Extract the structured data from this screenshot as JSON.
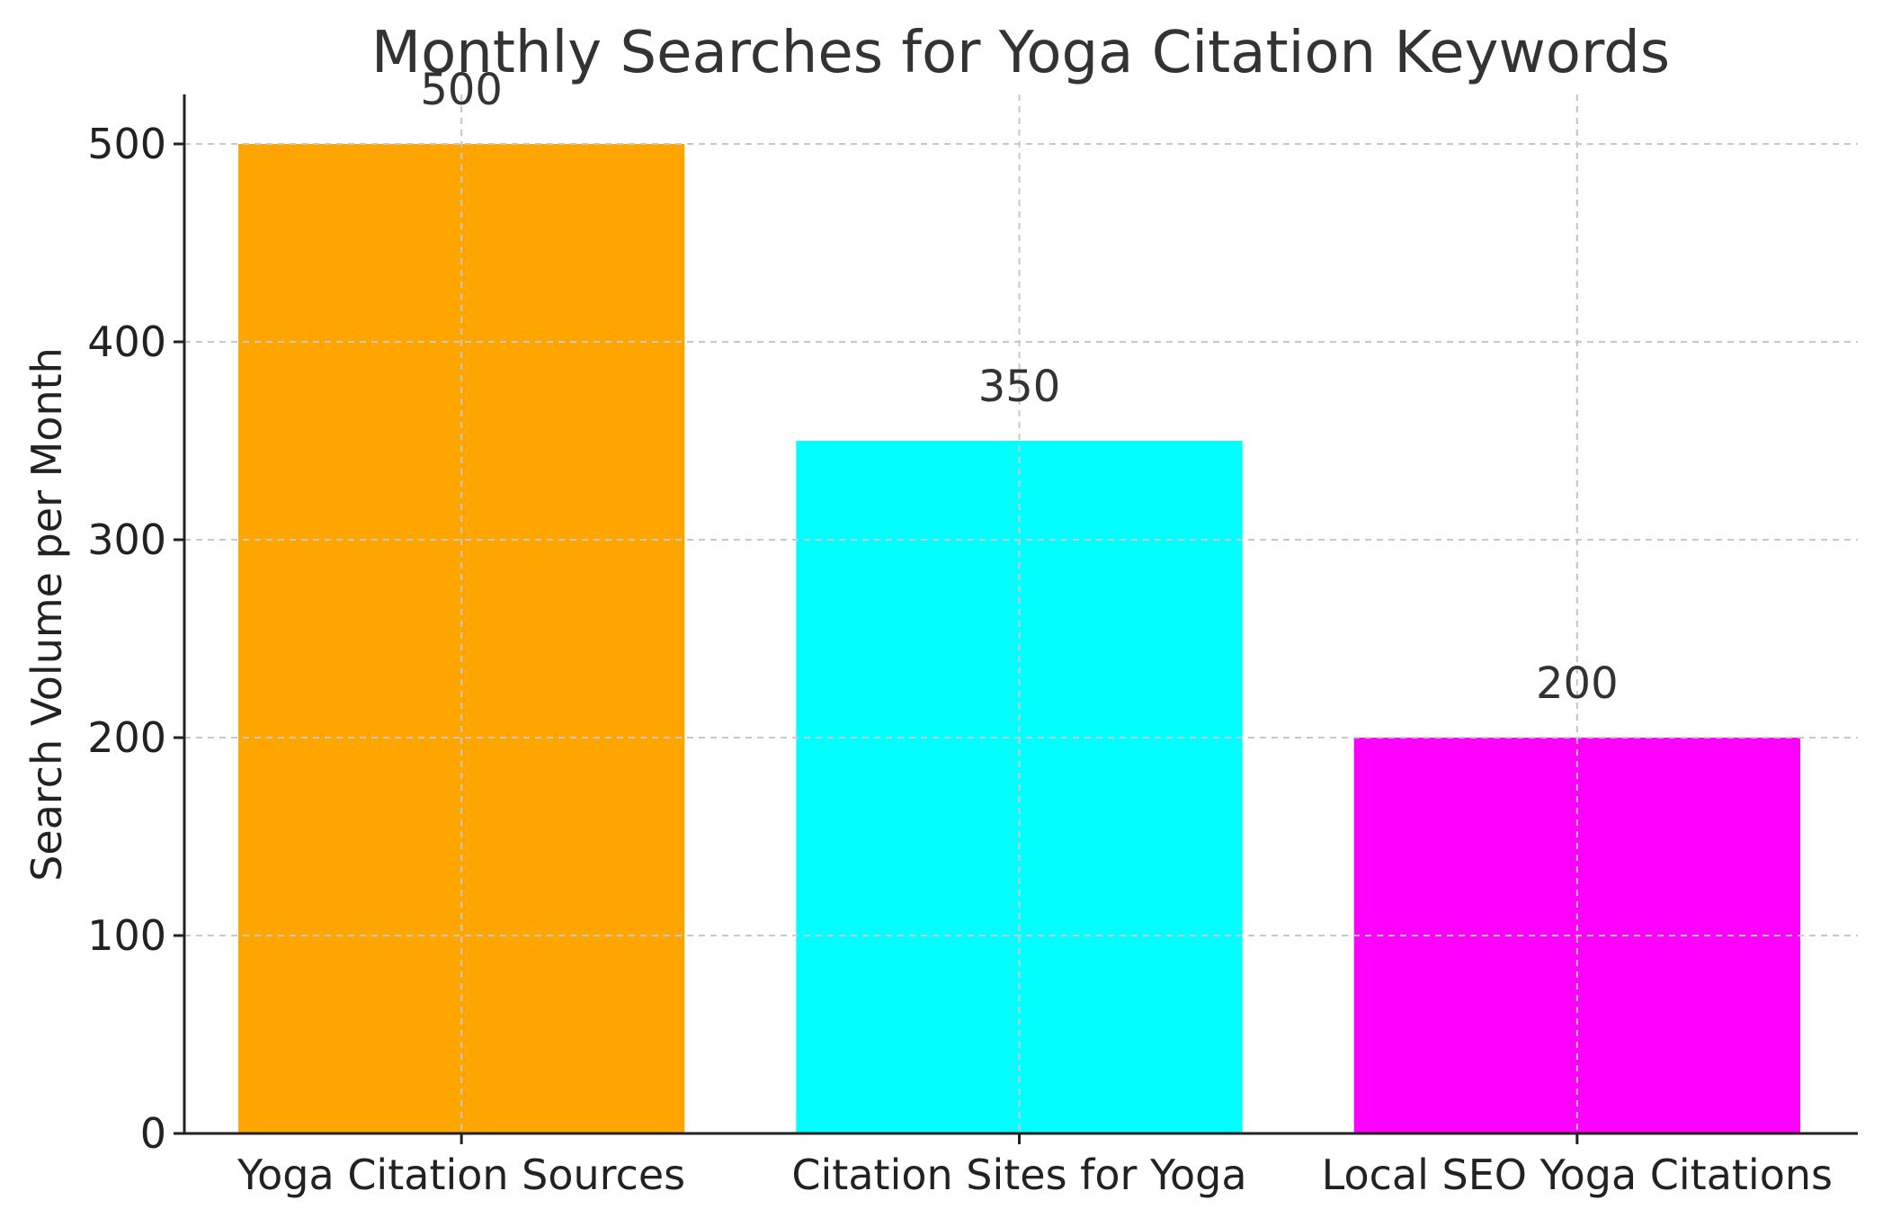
{
  "chart_data": {
    "type": "bar",
    "title": "Monthly Searches for Yoga Citation Keywords",
    "xlabel": "",
    "ylabel": "Search Volume per Month",
    "categories": [
      "Yoga Citation Sources",
      "Citation Sites for Yoga",
      "Local SEO Yoga Citations"
    ],
    "values": [
      500,
      350,
      200
    ],
    "colors": [
      "#FFA500",
      "#00FFFF",
      "#FF00FF"
    ],
    "ylim": [
      0,
      525
    ],
    "yticks": [
      0,
      100,
      200,
      300,
      400,
      500
    ],
    "grid": true,
    "data_labels": [
      "500",
      "350",
      "200"
    ]
  }
}
